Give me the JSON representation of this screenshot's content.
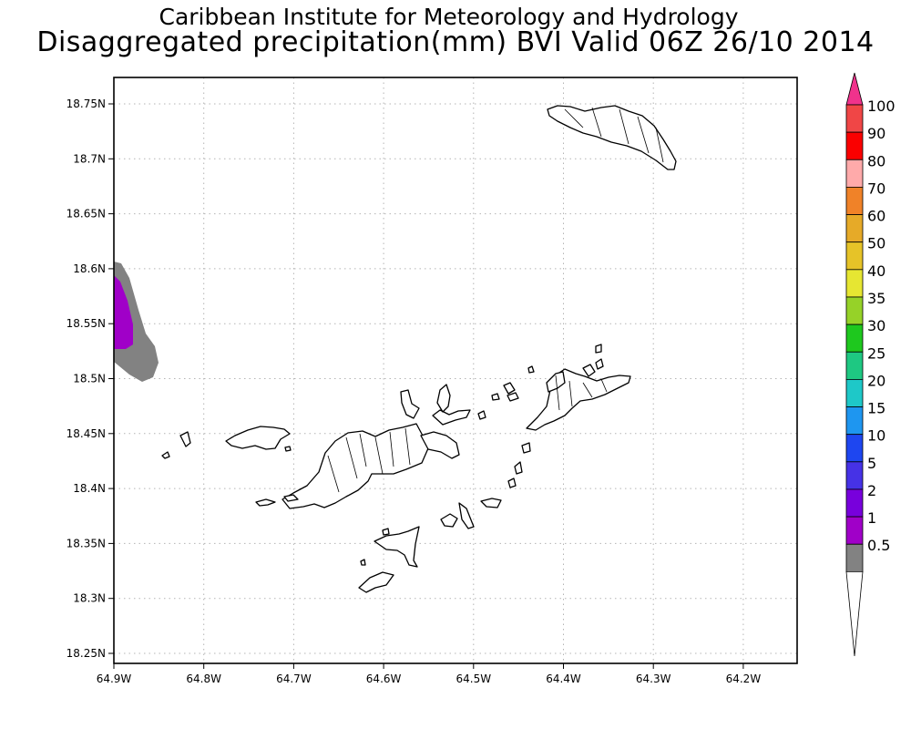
{
  "header": {
    "institution": "Caribbean Institute for Meteorology and Hydrology",
    "product": "Disaggregated precipitation(mm) BVI Valid 06Z 26/10 2014"
  },
  "map": {
    "lat_ticks": [
      "18.75N",
      "18.7N",
      "18.65N",
      "18.6N",
      "18.55N",
      "18.5N",
      "18.45N",
      "18.4N",
      "18.35N",
      "18.3N",
      "18.25N"
    ],
    "lon_ticks": [
      "64.9W",
      "64.8W",
      "64.7W",
      "64.6W",
      "64.5W",
      "64.4W",
      "64.3W",
      "64.2W"
    ],
    "lat_values": [
      18.75,
      18.7,
      18.65,
      18.6,
      18.55,
      18.5,
      18.45,
      18.4,
      18.35,
      18.3,
      18.25
    ],
    "lon_values": [
      -64.9,
      -64.8,
      -64.7,
      -64.6,
      -64.5,
      -64.4,
      -64.3,
      -64.2
    ],
    "grid": true,
    "colors": {
      "land_fill": "#ffffff",
      "coast": "#000000",
      "grid": "#b4b4b4"
    }
  },
  "precip_areas": [
    {
      "category": "0.5-1 mm",
      "color": "#828282"
    },
    {
      "category": "1-2 mm",
      "color": "#a000c8"
    }
  ],
  "legend": {
    "labels": [
      "100",
      "90",
      "80",
      "70",
      "60",
      "50",
      "40",
      "35",
      "30",
      "25",
      "20",
      "15",
      "10",
      "5",
      "2",
      "1",
      "0.5"
    ],
    "colors": [
      "#f0328c",
      "#f04646",
      "#fa0000",
      "#ffaaaa",
      "#f08228",
      "#e6aa28",
      "#e6c328",
      "#e6e632",
      "#96d228",
      "#1ec81e",
      "#1ec882",
      "#1ec8c8",
      "#1e96f0",
      "#1e46f0",
      "#4632e6",
      "#7800dc",
      "#a000c8",
      "#828282",
      "#ffffff"
    ]
  }
}
